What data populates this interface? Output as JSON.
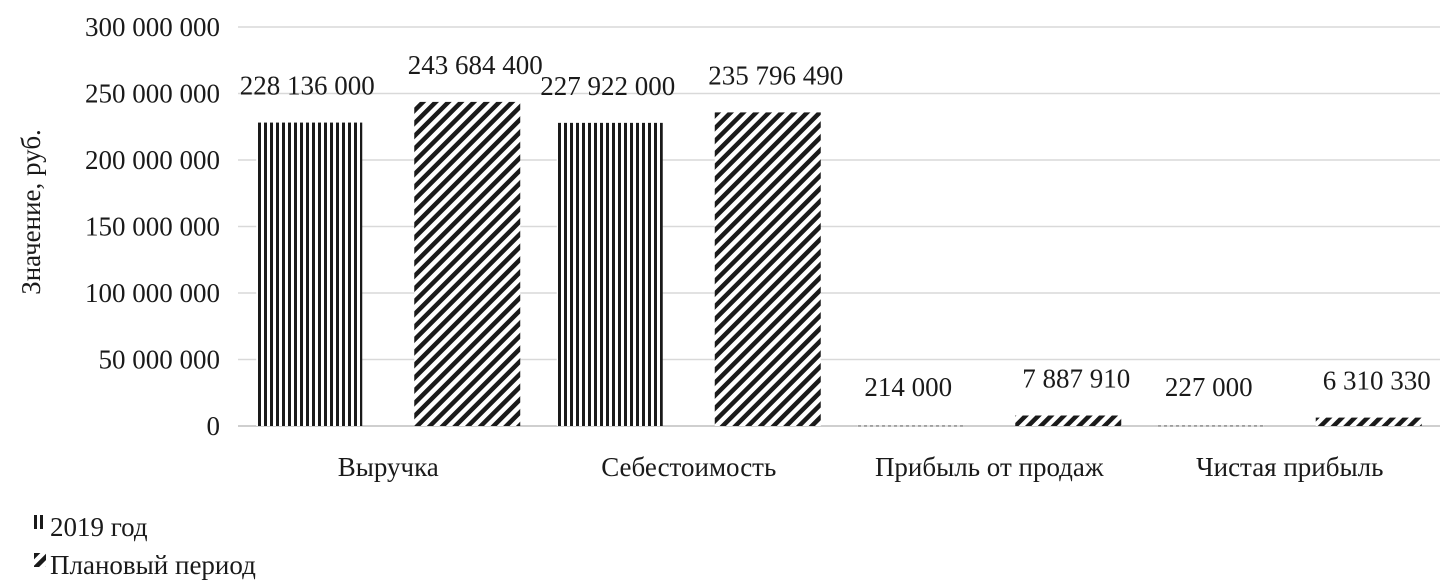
{
  "chart_data": {
    "type": "bar",
    "categories": [
      "Выручка",
      "Себестоимость",
      "Прибыль от продаж",
      "Чистая прибыль"
    ],
    "series": [
      {
        "name": "2019 год",
        "pattern": "vertical-lines",
        "values": [
          228136000,
          227922000,
          214000,
          227000
        ],
        "labels": [
          "228 136 000",
          "227 922 000",
          "214 000",
          "227 000"
        ]
      },
      {
        "name": "Плановый период",
        "pattern": "diagonal-hatch",
        "values": [
          243684400,
          235796490,
          7887910,
          6310330
        ],
        "labels": [
          "243 684 400",
          "235 796 490",
          "7 887 910",
          "6 310 330"
        ]
      }
    ],
    "ylabel": "Значение, руб.",
    "xlabel": "",
    "ylim": [
      0,
      300000000
    ],
    "yticks": [
      0,
      50000000,
      100000000,
      150000000,
      200000000,
      250000000,
      300000000
    ],
    "ytick_labels": [
      "0",
      "50 000 000",
      "100 000 000",
      "150 000 000",
      "200 000 000",
      "250 000 000",
      "300 000 000"
    ],
    "grid": true,
    "legend_position": "bottom-left",
    "colors": {
      "bar_stroke": "#1a1a1a",
      "gridline": "#d9d9d9",
      "background": "#ffffff"
    }
  }
}
